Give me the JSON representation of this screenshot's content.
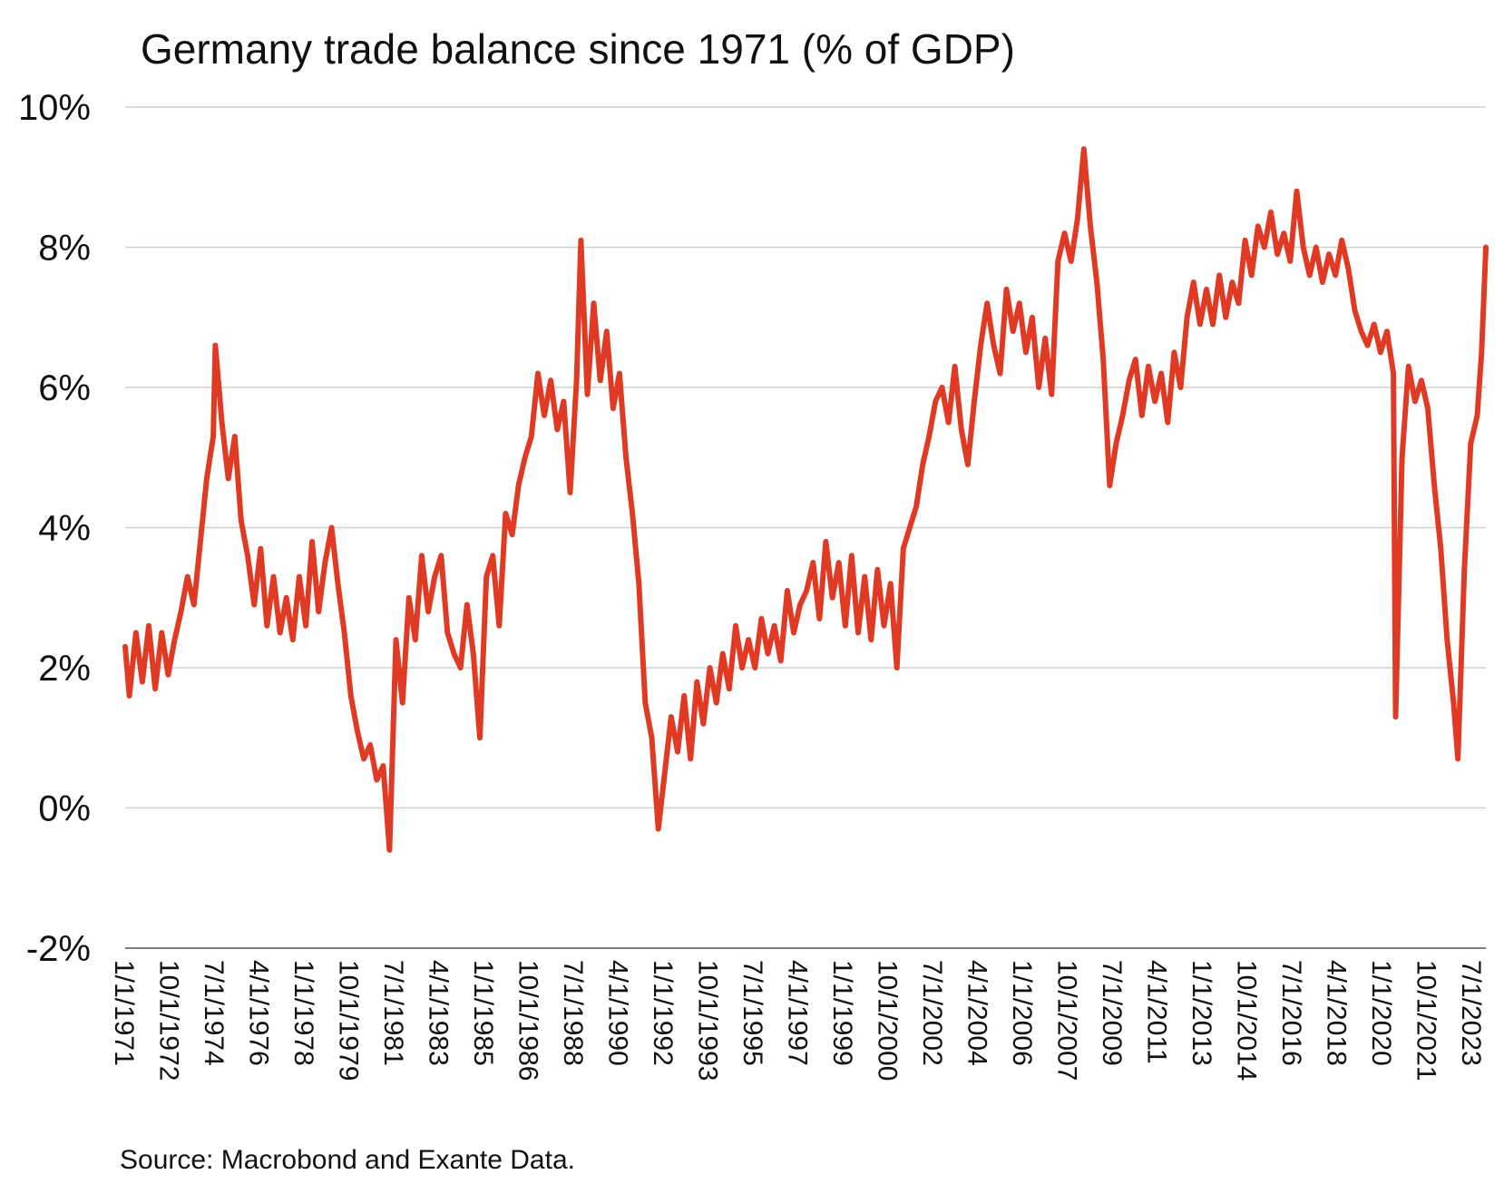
{
  "chart_data": {
    "type": "line",
    "title": "Germany trade balance since 1971 (% of GDP)",
    "xlabel": "",
    "ylabel": "",
    "ylim": [
      -2,
      10
    ],
    "yticks": [
      -2,
      0,
      2,
      4,
      6,
      8,
      10
    ],
    "yticklabels": [
      "-2%",
      "0%",
      "2%",
      "4%",
      "6%",
      "8%",
      "10%"
    ],
    "xlim": [
      "1971-01-01",
      "2023-10-01"
    ],
    "xticklabels": [
      "1/1/1971",
      "10/1/1972",
      "7/1/1974",
      "4/1/1976",
      "1/1/1978",
      "10/1/1979",
      "7/1/1981",
      "4/1/1983",
      "1/1/1985",
      "10/1/1986",
      "7/1/1988",
      "4/1/1990",
      "1/1/1992",
      "10/1/1993",
      "7/1/1995",
      "4/1/1997",
      "1/1/1999",
      "10/1/2000",
      "7/1/2002",
      "4/1/2004",
      "1/1/2006",
      "10/1/2007",
      "7/1/2009",
      "4/1/2011",
      "1/1/2013",
      "10/1/2014",
      "7/1/2016",
      "4/1/2018",
      "1/1/2020",
      "10/1/2021",
      "7/1/2023"
    ],
    "grid": true,
    "legend": "none",
    "series": [
      {
        "color": "#e03a24",
        "points": [
          [
            "1971-01-01",
            2.3
          ],
          [
            "1971-03-01",
            1.6
          ],
          [
            "1971-06-01",
            2.5
          ],
          [
            "1971-09-01",
            1.8
          ],
          [
            "1971-12-01",
            2.6
          ],
          [
            "1972-03-01",
            1.7
          ],
          [
            "1972-06-01",
            2.5
          ],
          [
            "1972-09-01",
            1.9
          ],
          [
            "1972-12-01",
            2.4
          ],
          [
            "1973-03-01",
            2.8
          ],
          [
            "1973-06-01",
            3.3
          ],
          [
            "1973-09-01",
            2.9
          ],
          [
            "1973-12-01",
            3.8
          ],
          [
            "1974-03-01",
            4.7
          ],
          [
            "1974-06-01",
            5.3
          ],
          [
            "1974-07-01",
            6.6
          ],
          [
            "1974-10-01",
            5.5
          ],
          [
            "1975-01-01",
            4.7
          ],
          [
            "1975-04-01",
            5.3
          ],
          [
            "1975-07-01",
            4.1
          ],
          [
            "1975-10-01",
            3.6
          ],
          [
            "1976-01-01",
            2.9
          ],
          [
            "1976-04-01",
            3.7
          ],
          [
            "1976-07-01",
            2.6
          ],
          [
            "1976-10-01",
            3.3
          ],
          [
            "1977-01-01",
            2.5
          ],
          [
            "1977-04-01",
            3.0
          ],
          [
            "1977-07-01",
            2.4
          ],
          [
            "1977-10-01",
            3.3
          ],
          [
            "1978-01-01",
            2.6
          ],
          [
            "1978-04-01",
            3.8
          ],
          [
            "1978-07-01",
            2.8
          ],
          [
            "1978-10-01",
            3.5
          ],
          [
            "1979-01-01",
            4.0
          ],
          [
            "1979-04-01",
            3.2
          ],
          [
            "1979-07-01",
            2.5
          ],
          [
            "1979-10-01",
            1.6
          ],
          [
            "1980-01-01",
            1.1
          ],
          [
            "1980-04-01",
            0.7
          ],
          [
            "1980-07-01",
            0.9
          ],
          [
            "1980-10-01",
            0.4
          ],
          [
            "1981-01-01",
            0.6
          ],
          [
            "1981-04-01",
            -0.6
          ],
          [
            "1981-07-01",
            2.4
          ],
          [
            "1981-10-01",
            1.5
          ],
          [
            "1982-01-01",
            3.0
          ],
          [
            "1982-04-01",
            2.4
          ],
          [
            "1982-07-01",
            3.6
          ],
          [
            "1982-10-01",
            2.8
          ],
          [
            "1983-01-01",
            3.3
          ],
          [
            "1983-04-01",
            3.6
          ],
          [
            "1983-07-01",
            2.5
          ],
          [
            "1983-10-01",
            2.2
          ],
          [
            "1984-01-01",
            2.0
          ],
          [
            "1984-04-01",
            2.9
          ],
          [
            "1984-07-01",
            2.2
          ],
          [
            "1984-10-01",
            1.0
          ],
          [
            "1985-01-01",
            3.3
          ],
          [
            "1985-04-01",
            3.6
          ],
          [
            "1985-07-01",
            2.6
          ],
          [
            "1985-10-01",
            4.2
          ],
          [
            "1986-01-01",
            3.9
          ],
          [
            "1986-04-01",
            4.6
          ],
          [
            "1986-07-01",
            5.0
          ],
          [
            "1986-10-01",
            5.3
          ],
          [
            "1987-01-01",
            6.2
          ],
          [
            "1987-04-01",
            5.6
          ],
          [
            "1987-07-01",
            6.1
          ],
          [
            "1987-10-01",
            5.4
          ],
          [
            "1988-01-01",
            5.8
          ],
          [
            "1988-04-01",
            4.5
          ],
          [
            "1988-07-01",
            6.1
          ],
          [
            "1988-09-01",
            8.1
          ],
          [
            "1988-12-01",
            5.9
          ],
          [
            "1989-03-01",
            7.2
          ],
          [
            "1989-06-01",
            6.1
          ],
          [
            "1989-09-01",
            6.8
          ],
          [
            "1989-12-01",
            5.7
          ],
          [
            "1990-03-01",
            6.2
          ],
          [
            "1990-06-01",
            5.0
          ],
          [
            "1990-09-01",
            4.2
          ],
          [
            "1990-12-01",
            3.2
          ],
          [
            "1991-03-01",
            1.5
          ],
          [
            "1991-06-01",
            1.0
          ],
          [
            "1991-09-01",
            -0.3
          ],
          [
            "1991-12-01",
            0.5
          ],
          [
            "1992-03-01",
            1.3
          ],
          [
            "1992-06-01",
            0.8
          ],
          [
            "1992-09-01",
            1.6
          ],
          [
            "1992-12-01",
            0.7
          ],
          [
            "1993-03-01",
            1.8
          ],
          [
            "1993-06-01",
            1.2
          ],
          [
            "1993-09-01",
            2.0
          ],
          [
            "1993-12-01",
            1.5
          ],
          [
            "1994-03-01",
            2.2
          ],
          [
            "1994-06-01",
            1.7
          ],
          [
            "1994-09-01",
            2.6
          ],
          [
            "1994-12-01",
            2.0
          ],
          [
            "1995-03-01",
            2.4
          ],
          [
            "1995-06-01",
            2.0
          ],
          [
            "1995-09-01",
            2.7
          ],
          [
            "1995-12-01",
            2.2
          ],
          [
            "1996-03-01",
            2.6
          ],
          [
            "1996-06-01",
            2.1
          ],
          [
            "1996-09-01",
            3.1
          ],
          [
            "1996-12-01",
            2.5
          ],
          [
            "1997-03-01",
            2.9
          ],
          [
            "1997-06-01",
            3.1
          ],
          [
            "1997-09-01",
            3.5
          ],
          [
            "1997-12-01",
            2.7
          ],
          [
            "1998-03-01",
            3.8
          ],
          [
            "1998-06-01",
            3.0
          ],
          [
            "1998-09-01",
            3.5
          ],
          [
            "1998-12-01",
            2.6
          ],
          [
            "1999-03-01",
            3.6
          ],
          [
            "1999-06-01",
            2.5
          ],
          [
            "1999-09-01",
            3.3
          ],
          [
            "1999-12-01",
            2.4
          ],
          [
            "2000-03-01",
            3.4
          ],
          [
            "2000-06-01",
            2.6
          ],
          [
            "2000-09-01",
            3.2
          ],
          [
            "2000-12-01",
            2.0
          ],
          [
            "2001-03-01",
            3.7
          ],
          [
            "2001-06-01",
            4.0
          ],
          [
            "2001-09-01",
            4.3
          ],
          [
            "2001-12-01",
            4.9
          ],
          [
            "2002-03-01",
            5.3
          ],
          [
            "2002-06-01",
            5.8
          ],
          [
            "2002-09-01",
            6.0
          ],
          [
            "2002-12-01",
            5.5
          ],
          [
            "2003-03-01",
            6.3
          ],
          [
            "2003-06-01",
            5.4
          ],
          [
            "2003-09-01",
            4.9
          ],
          [
            "2003-12-01",
            5.8
          ],
          [
            "2004-03-01",
            6.6
          ],
          [
            "2004-06-01",
            7.2
          ],
          [
            "2004-09-01",
            6.6
          ],
          [
            "2004-12-01",
            6.2
          ],
          [
            "2005-03-01",
            7.4
          ],
          [
            "2005-06-01",
            6.8
          ],
          [
            "2005-09-01",
            7.2
          ],
          [
            "2005-12-01",
            6.5
          ],
          [
            "2006-03-01",
            7.0
          ],
          [
            "2006-06-01",
            6.0
          ],
          [
            "2006-09-01",
            6.7
          ],
          [
            "2006-12-01",
            5.9
          ],
          [
            "2007-03-01",
            7.8
          ],
          [
            "2007-06-01",
            8.2
          ],
          [
            "2007-09-01",
            7.8
          ],
          [
            "2007-12-01",
            8.4
          ],
          [
            "2008-03-01",
            9.4
          ],
          [
            "2008-06-01",
            8.3
          ],
          [
            "2008-09-01",
            7.5
          ],
          [
            "2008-12-01",
            6.4
          ],
          [
            "2009-03-01",
            4.6
          ],
          [
            "2009-06-01",
            5.2
          ],
          [
            "2009-09-01",
            5.6
          ],
          [
            "2009-12-01",
            6.1
          ],
          [
            "2010-03-01",
            6.4
          ],
          [
            "2010-06-01",
            5.6
          ],
          [
            "2010-09-01",
            6.3
          ],
          [
            "2010-12-01",
            5.8
          ],
          [
            "2011-03-01",
            6.2
          ],
          [
            "2011-06-01",
            5.5
          ],
          [
            "2011-09-01",
            6.5
          ],
          [
            "2011-12-01",
            6.0
          ],
          [
            "2012-03-01",
            7.0
          ],
          [
            "2012-06-01",
            7.5
          ],
          [
            "2012-09-01",
            6.9
          ],
          [
            "2012-12-01",
            7.4
          ],
          [
            "2013-03-01",
            6.9
          ],
          [
            "2013-06-01",
            7.6
          ],
          [
            "2013-09-01",
            7.0
          ],
          [
            "2013-12-01",
            7.5
          ],
          [
            "2014-03-01",
            7.2
          ],
          [
            "2014-06-01",
            8.1
          ],
          [
            "2014-09-01",
            7.6
          ],
          [
            "2014-12-01",
            8.3
          ],
          [
            "2015-03-01",
            8.0
          ],
          [
            "2015-06-01",
            8.5
          ],
          [
            "2015-09-01",
            7.9
          ],
          [
            "2015-12-01",
            8.2
          ],
          [
            "2016-03-01",
            7.8
          ],
          [
            "2016-06-01",
            8.8
          ],
          [
            "2016-09-01",
            8.0
          ],
          [
            "2016-12-01",
            7.6
          ],
          [
            "2017-03-01",
            8.0
          ],
          [
            "2017-06-01",
            7.5
          ],
          [
            "2017-09-01",
            7.9
          ],
          [
            "2017-12-01",
            7.6
          ],
          [
            "2018-03-01",
            8.1
          ],
          [
            "2018-06-01",
            7.7
          ],
          [
            "2018-09-01",
            7.1
          ],
          [
            "2018-12-01",
            6.8
          ],
          [
            "2019-03-01",
            6.6
          ],
          [
            "2019-06-01",
            6.9
          ],
          [
            "2019-09-01",
            6.5
          ],
          [
            "2019-12-01",
            6.8
          ],
          [
            "2020-03-01",
            6.2
          ],
          [
            "2020-04-01",
            1.3
          ],
          [
            "2020-07-01",
            5.0
          ],
          [
            "2020-10-01",
            6.3
          ],
          [
            "2021-01-01",
            5.8
          ],
          [
            "2021-04-01",
            6.1
          ],
          [
            "2021-07-01",
            5.7
          ],
          [
            "2021-10-01",
            4.6
          ],
          [
            "2022-01-01",
            3.7
          ],
          [
            "2022-04-01",
            2.4
          ],
          [
            "2022-07-01",
            1.5
          ],
          [
            "2022-09-01",
            0.7
          ],
          [
            "2022-12-01",
            3.4
          ],
          [
            "2023-03-01",
            5.2
          ],
          [
            "2023-06-01",
            5.6
          ],
          [
            "2023-08-01",
            6.5
          ],
          [
            "2023-10-01",
            8.0
          ]
        ]
      }
    ]
  },
  "source": "Source: Macrobond and Exante Data."
}
